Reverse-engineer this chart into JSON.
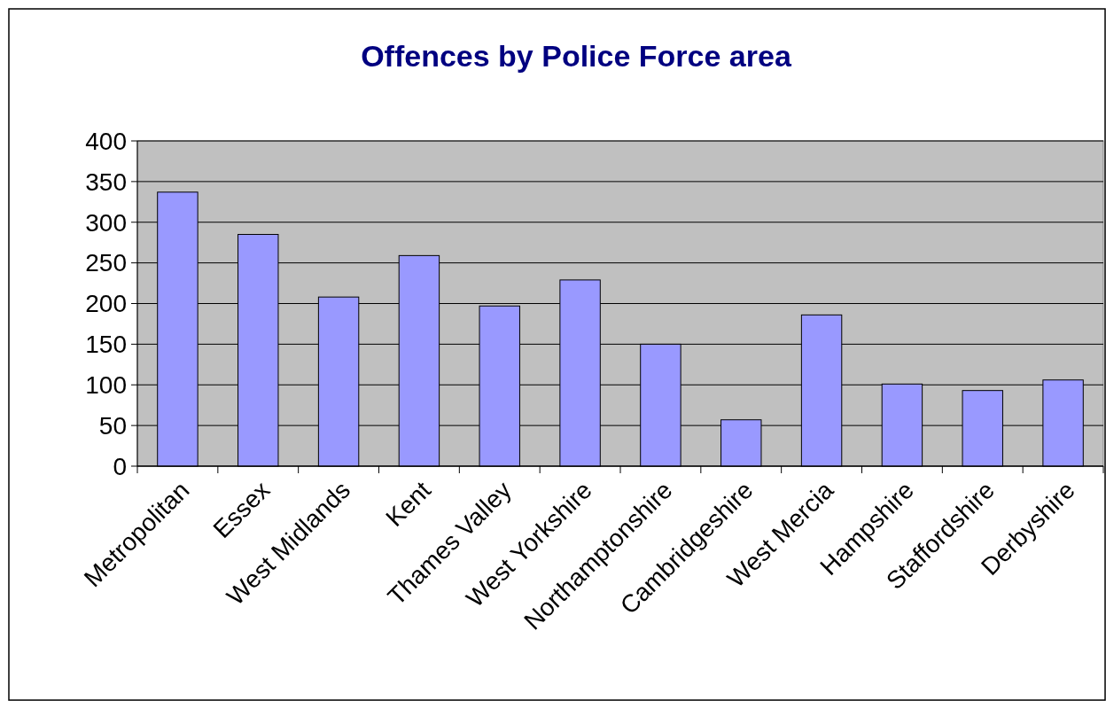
{
  "chart_data": {
    "type": "bar",
    "title": "Offences by Police Force area",
    "categories": [
      "Metropolitan",
      "Essex",
      "West Midlands",
      "Kent",
      "Thames Valley",
      "West Yorkshire",
      "Northamptonshire",
      "Cambridgeshire",
      "West Mercia",
      "Hampshire",
      "Staffordshire",
      "Derbyshire"
    ],
    "values": [
      337,
      285,
      208,
      259,
      197,
      229,
      150,
      57,
      186,
      101,
      93,
      106
    ],
    "color": "#9999ff",
    "ylim": [
      0,
      400
    ],
    "yticks": [
      0,
      50,
      100,
      150,
      200,
      250,
      300,
      350,
      400
    ],
    "grid": "y"
  }
}
